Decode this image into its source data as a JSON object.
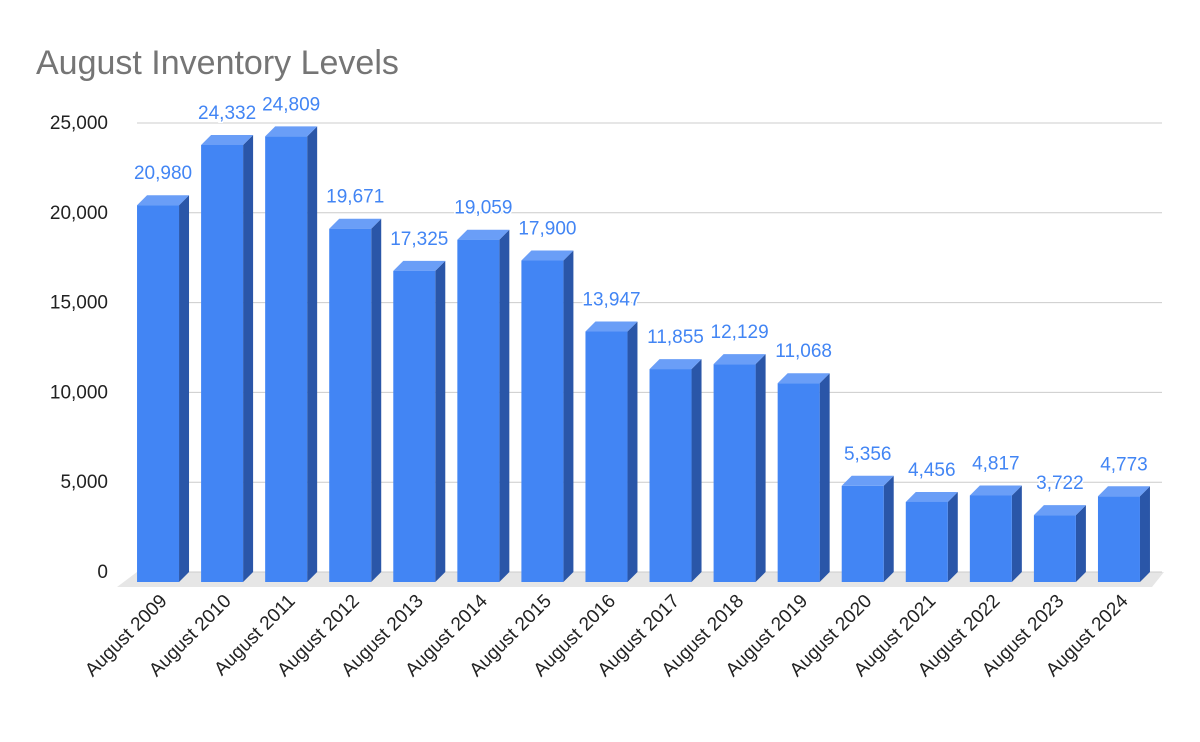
{
  "chart_data": {
    "type": "bar3d",
    "title": "August Inventory Levels",
    "categories": [
      "August 2009",
      "August 2010",
      "August 2011",
      "August 2012",
      "August 2013",
      "August 2014",
      "August 2015",
      "August 2016",
      "August 2017",
      "August 2018",
      "August 2019",
      "August 2020",
      "August 2021",
      "August 2022",
      "August 2023",
      "August 2024"
    ],
    "values": [
      20980,
      24332,
      24809,
      19671,
      17325,
      19059,
      17900,
      13947,
      11855,
      12129,
      11068,
      5356,
      4456,
      4817,
      3722,
      4773
    ],
    "value_labels": [
      "20,980",
      "24,332",
      "24,809",
      "19,671",
      "17,325",
      "19,059",
      "17,900",
      "13,947",
      "11,855",
      "12,129",
      "11,068",
      "5,356",
      "4,456",
      "4,817",
      "3,722",
      "4,773"
    ],
    "color": "#4285f4",
    "ylim": [
      0,
      25000
    ],
    "yticks": [
      0,
      {
        "value": 5000,
        "label": "5,000"
      },
      {
        "value": 10000,
        "label": "10,000"
      },
      {
        "value": 15000,
        "label": "15,000"
      },
      {
        "value": 20000,
        "label": "20,000"
      },
      {
        "value": 25000,
        "label": "25,000"
      }
    ],
    "grid": true
  }
}
